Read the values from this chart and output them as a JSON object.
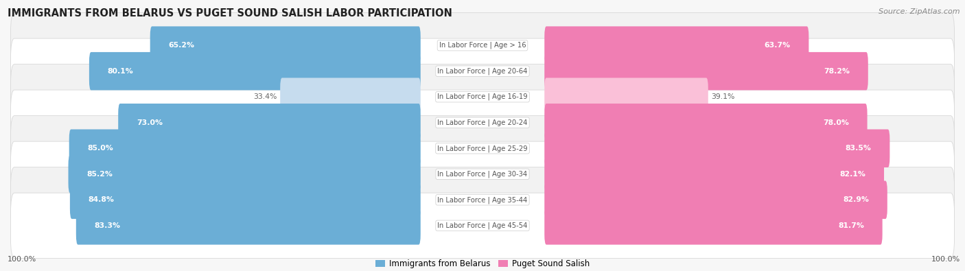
{
  "title": "IMMIGRANTS FROM BELARUS VS PUGET SOUND SALISH LABOR PARTICIPATION",
  "source": "Source: ZipAtlas.com",
  "categories": [
    "In Labor Force | Age > 16",
    "In Labor Force | Age 20-64",
    "In Labor Force | Age 16-19",
    "In Labor Force | Age 20-24",
    "In Labor Force | Age 25-29",
    "In Labor Force | Age 30-34",
    "In Labor Force | Age 35-44",
    "In Labor Force | Age 45-54"
  ],
  "belarus_values": [
    65.2,
    80.1,
    33.4,
    73.0,
    85.0,
    85.2,
    84.8,
    83.3
  ],
  "salish_values": [
    63.7,
    78.2,
    39.1,
    78.0,
    83.5,
    82.1,
    82.9,
    81.7
  ],
  "belarus_color": "#6BAED6",
  "salish_color": "#F07EB3",
  "belarus_light_color": "#C6DCEE",
  "salish_light_color": "#FAC0D8",
  "row_colors": [
    "#f2f2f2",
    "#ffffff"
  ],
  "row_border_color": "#d8d8d8",
  "center_label_color": "#555555",
  "value_label_color_white": "#ffffff",
  "value_label_color_dark": "#666666",
  "background_color": "#f7f7f7",
  "max_value": 100.0,
  "legend_belarus": "Immigrants from Belarus",
  "legend_salish": "Puget Sound Salish",
  "bottom_label": "100.0%"
}
